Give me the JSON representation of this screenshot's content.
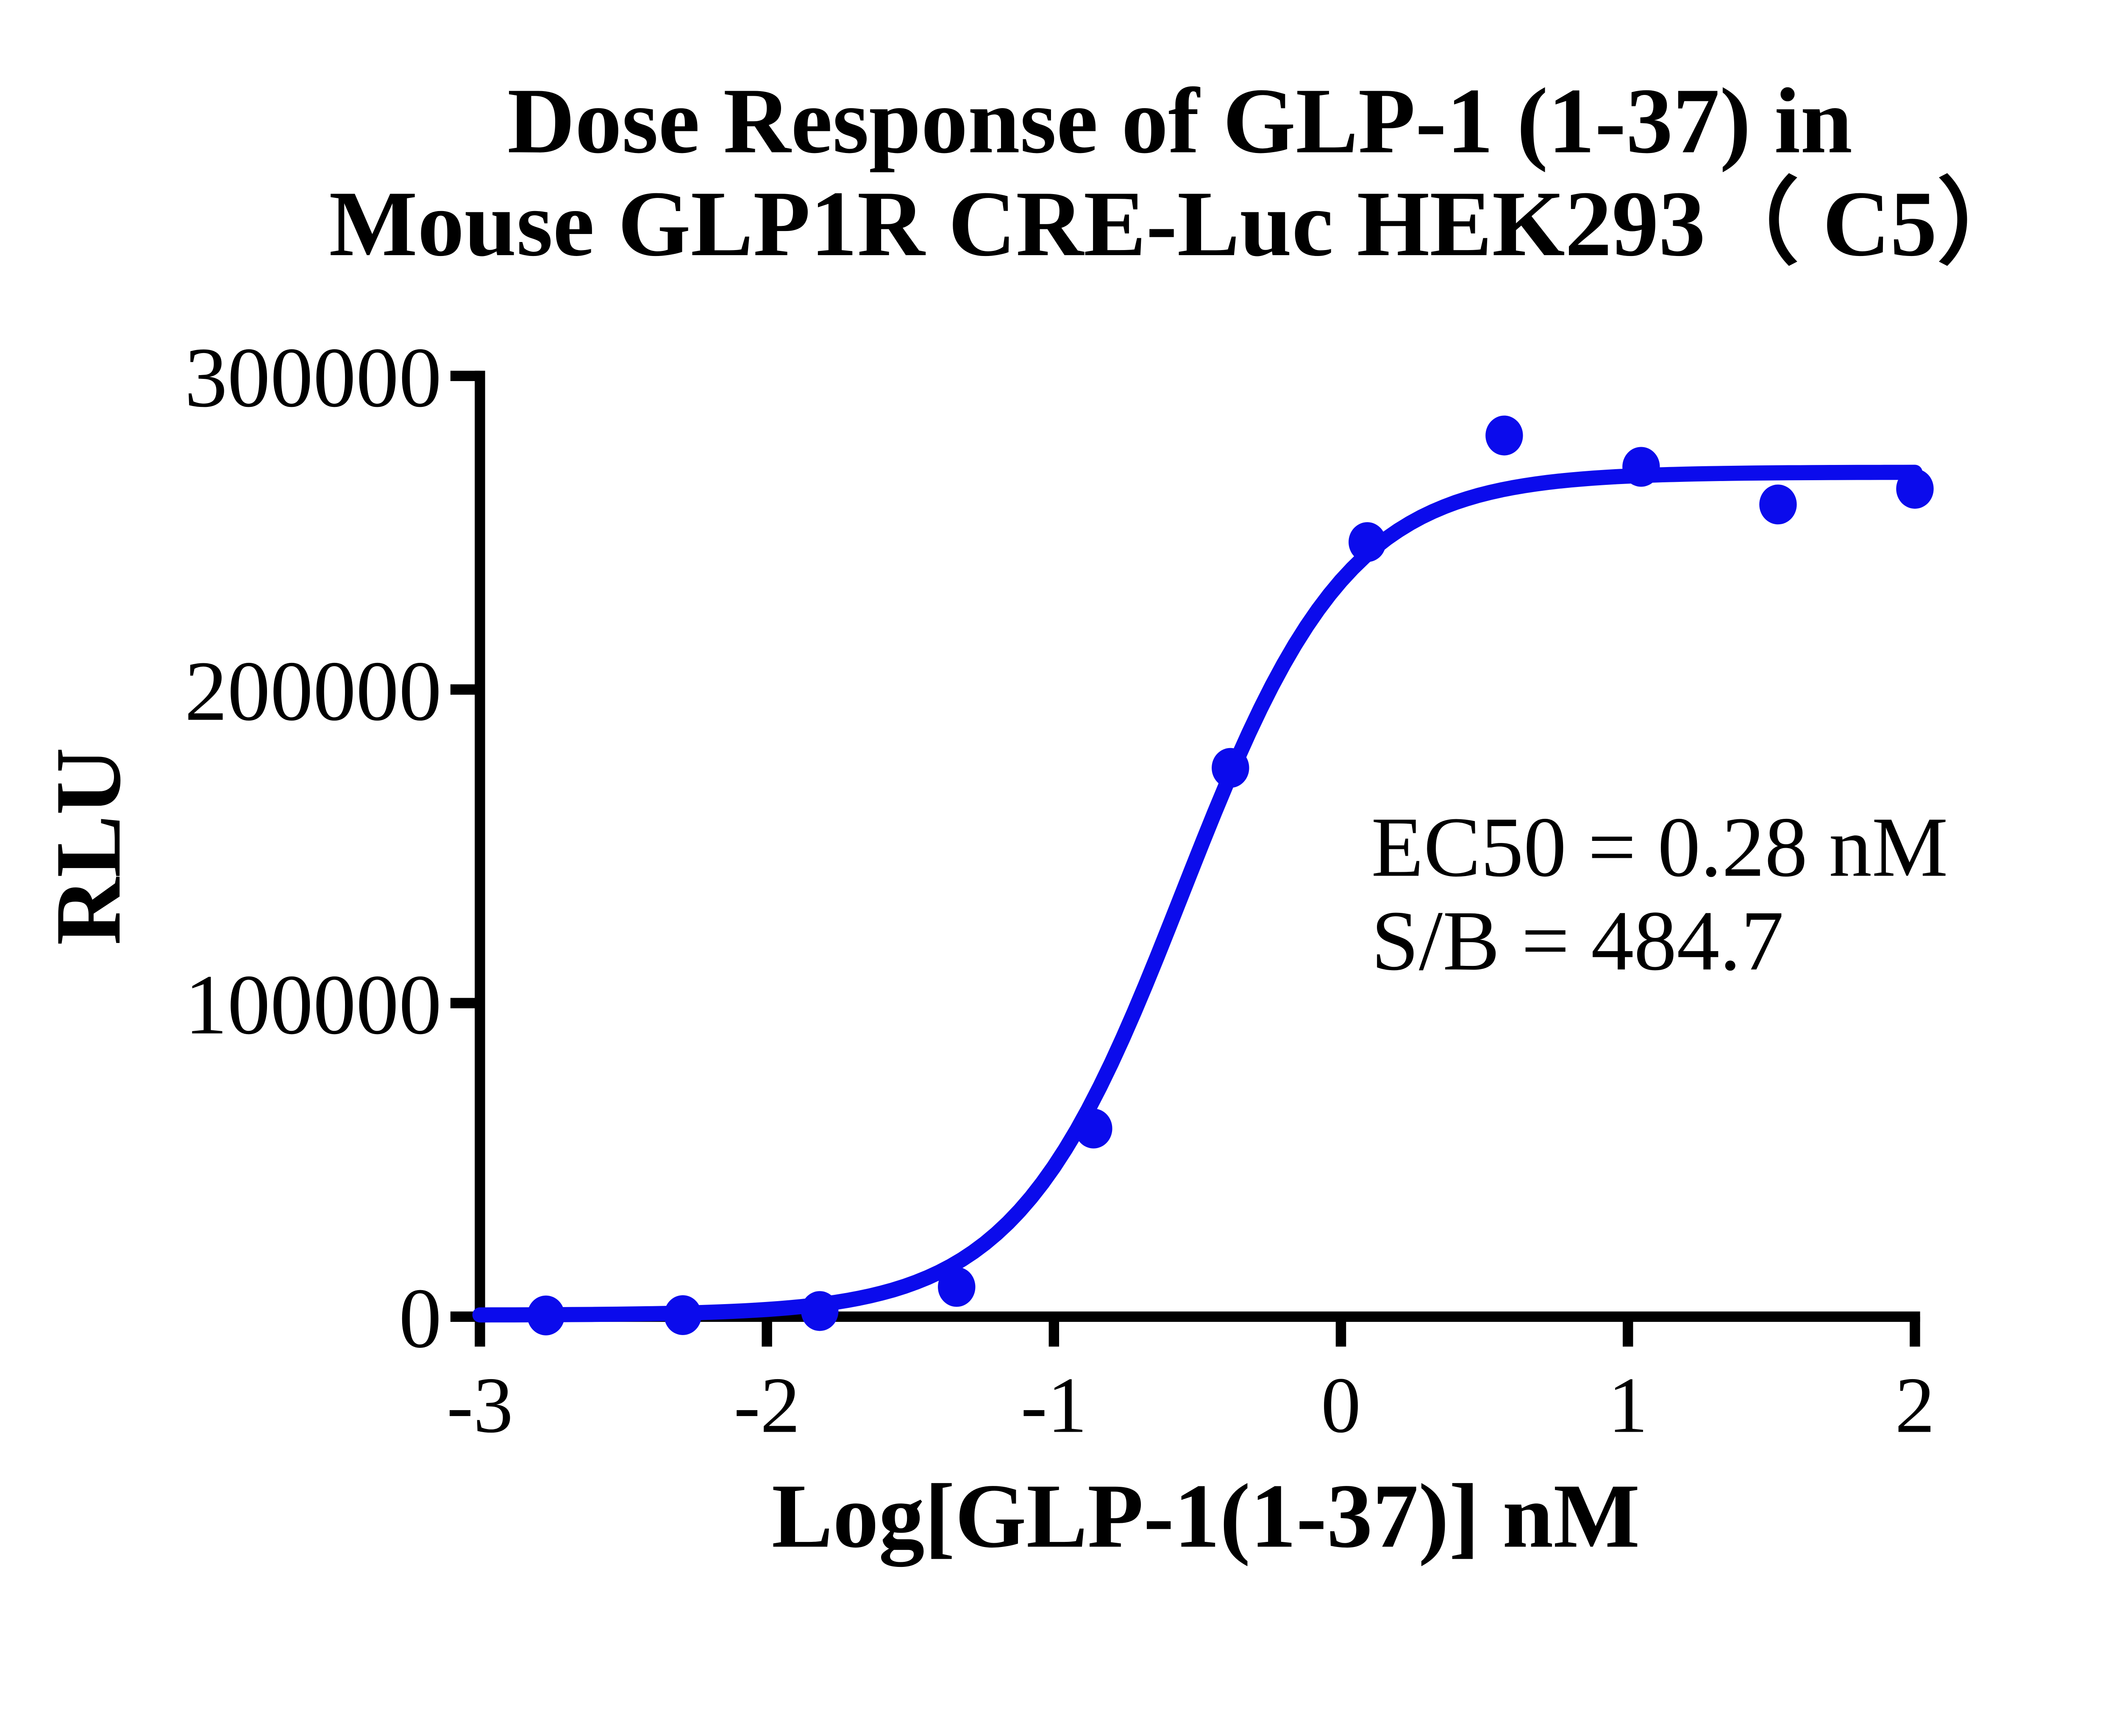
{
  "figure": {
    "background": "#ffffff",
    "axis_color": "#000000",
    "accent_blue": "#0b0bec"
  },
  "chart_data": {
    "type": "scatter",
    "title_lines": [
      "Dose Response of GLP-1 (1-37) in",
      "Mouse GLP1R CRE-Luc HEK293（ C5）"
    ],
    "xlabel": "Log[GLP-1(1-37)] nM",
    "ylabel": "RLU",
    "xlim": [
      -3,
      2
    ],
    "ylim": [
      0,
      300000
    ],
    "x_ticks": [
      -3,
      -2,
      -1,
      0,
      1,
      2
    ],
    "x_tick_labels": [
      "-3",
      "-2",
      "-1",
      "0",
      "1",
      "2"
    ],
    "y_ticks": [
      0,
      100000,
      200000,
      300000
    ],
    "y_tick_labels": [
      "0",
      "100000",
      "200000",
      "300000"
    ],
    "grid": false,
    "legend": "none",
    "annotation_lines": [
      "EC50 = 0.28 nM",
      "S/B = 484.7"
    ],
    "ec50_nM": 0.28,
    "s_over_b": 484.7,
    "series": [
      {
        "name": "GLP-1 (1-37)",
        "color": "#0b0bec",
        "marker": "circle",
        "points": [
          {
            "log_conc": -2.77,
            "rlu": 400
          },
          {
            "log_conc": -2.293,
            "rlu": 500
          },
          {
            "log_conc": -1.816,
            "rlu": 1800
          },
          {
            "log_conc": -1.339,
            "rlu": 9500
          },
          {
            "log_conc": -0.862,
            "rlu": 60000
          },
          {
            "log_conc": -0.385,
            "rlu": 175000
          },
          {
            "log_conc": 0.092,
            "rlu": 247000
          },
          {
            "log_conc": 0.569,
            "rlu": 281000
          },
          {
            "log_conc": 1.046,
            "rlu": 271000
          },
          {
            "log_conc": 1.523,
            "rlu": 259000
          },
          {
            "log_conc": 2.0,
            "rlu": 264000
          }
        ]
      }
    ],
    "fit_curve": {
      "model": "4PL",
      "bottom": 500,
      "top": 269300,
      "log_ec50": -0.553,
      "hill_slope": 1.5
    }
  }
}
